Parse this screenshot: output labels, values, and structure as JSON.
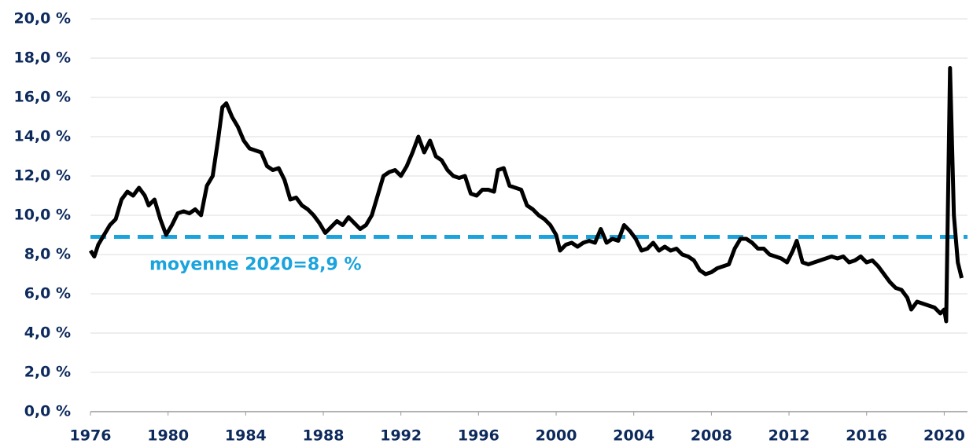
{
  "chart_data": {
    "type": "line",
    "xlim": [
      1976,
      2021.2
    ],
    "xticks": [
      1976,
      1980,
      1984,
      1988,
      1992,
      1996,
      2000,
      2004,
      2008,
      2012,
      2016,
      2020
    ],
    "ylim": [
      0,
      20
    ],
    "yticks": [
      {
        "value": 0,
        "label": "0,0 %"
      },
      {
        "value": 2,
        "label": "2,0 %"
      },
      {
        "value": 4,
        "label": "4,0 %"
      },
      {
        "value": 6,
        "label": "6,0 %"
      },
      {
        "value": 8,
        "label": "8,0 %"
      },
      {
        "value": 10,
        "label": "10,0 %"
      },
      {
        "value": 12,
        "label": "12,0 %"
      },
      {
        "value": 14,
        "label": "14,0 %"
      },
      {
        "value": 16,
        "label": "16,0 %"
      },
      {
        "value": 18,
        "label": "18,0 %"
      },
      {
        "value": 20,
        "label": "20,0 %"
      }
    ],
    "grid": true,
    "series": [
      {
        "color": "#000000",
        "x": [
          1976.0,
          1976.2,
          1976.4,
          1976.7,
          1977.0,
          1977.3,
          1977.6,
          1977.9,
          1978.2,
          1978.5,
          1978.8,
          1979.0,
          1979.3,
          1979.6,
          1979.9,
          1980.2,
          1980.5,
          1980.8,
          1981.1,
          1981.4,
          1981.7,
          1982.0,
          1982.3,
          1982.6,
          1982.8,
          1983.0,
          1983.3,
          1983.6,
          1983.9,
          1984.2,
          1984.5,
          1984.8,
          1985.1,
          1985.4,
          1985.7,
          1986.0,
          1986.3,
          1986.6,
          1986.9,
          1987.2,
          1987.5,
          1987.8,
          1988.1,
          1988.4,
          1988.7,
          1989.0,
          1989.3,
          1989.6,
          1989.9,
          1990.2,
          1990.5,
          1990.8,
          1991.1,
          1991.4,
          1991.7,
          1992.0,
          1992.3,
          1992.6,
          1992.9,
          1993.2,
          1993.5,
          1993.8,
          1994.1,
          1994.4,
          1994.7,
          1995.0,
          1995.3,
          1995.6,
          1995.9,
          1996.2,
          1996.5,
          1996.8,
          1997.0,
          1997.3,
          1997.6,
          1997.9,
          1998.2,
          1998.5,
          1998.8,
          1999.1,
          1999.4,
          1999.7,
          2000.0,
          2000.2,
          2000.5,
          2000.8,
          2001.1,
          2001.4,
          2001.7,
          2002.0,
          2002.3,
          2002.6,
          2002.9,
          2003.2,
          2003.5,
          2003.8,
          2004.1,
          2004.4,
          2004.7,
          2005.0,
          2005.3,
          2005.6,
          2005.9,
          2006.2,
          2006.5,
          2006.8,
          2007.1,
          2007.4,
          2007.7,
          2008.0,
          2008.3,
          2008.6,
          2008.9,
          2009.2,
          2009.5,
          2009.8,
          2010.1,
          2010.4,
          2010.7,
          2011.0,
          2011.3,
          2011.6,
          2011.9,
          2012.2,
          2012.4,
          2012.7,
          2013.0,
          2013.3,
          2013.6,
          2013.9,
          2014.2,
          2014.5,
          2014.8,
          2015.1,
          2015.4,
          2015.7,
          2016.0,
          2016.3,
          2016.6,
          2016.9,
          2017.2,
          2017.5,
          2017.8,
          2018.1,
          2018.3,
          2018.6,
          2018.9,
          2019.2,
          2019.5,
          2019.8,
          2020.0,
          2020.1,
          2020.3,
          2020.5,
          2020.7,
          2020.9
        ],
        "values": [
          8.2,
          7.9,
          8.5,
          9.0,
          9.5,
          9.8,
          10.8,
          11.2,
          11.0,
          11.4,
          11.0,
          10.5,
          10.8,
          9.8,
          9.0,
          9.5,
          10.1,
          10.2,
          10.1,
          10.3,
          10.0,
          11.5,
          12.0,
          14.0,
          15.5,
          15.7,
          15.0,
          14.5,
          13.8,
          13.4,
          13.3,
          13.2,
          12.5,
          12.3,
          12.4,
          11.8,
          10.8,
          10.9,
          10.5,
          10.3,
          10.0,
          9.6,
          9.1,
          9.4,
          9.7,
          9.5,
          9.9,
          9.6,
          9.3,
          9.5,
          10.0,
          11.0,
          12.0,
          12.2,
          12.3,
          12.0,
          12.5,
          13.2,
          14.0,
          13.2,
          13.8,
          13.0,
          12.8,
          12.3,
          12.0,
          11.9,
          12.0,
          11.1,
          11.0,
          11.3,
          11.3,
          11.2,
          12.3,
          12.4,
          11.5,
          11.4,
          11.3,
          10.5,
          10.3,
          10.0,
          9.8,
          9.5,
          9.0,
          8.2,
          8.5,
          8.6,
          8.4,
          8.6,
          8.7,
          8.6,
          9.3,
          8.6,
          8.8,
          8.7,
          9.5,
          9.2,
          8.8,
          8.2,
          8.3,
          8.6,
          8.2,
          8.4,
          8.2,
          8.3,
          8.0,
          7.9,
          7.7,
          7.2,
          7.0,
          7.1,
          7.3,
          7.4,
          7.5,
          8.3,
          8.8,
          8.8,
          8.6,
          8.3,
          8.3,
          8.0,
          7.9,
          7.8,
          7.6,
          8.2,
          8.7,
          7.6,
          7.5,
          7.6,
          7.7,
          7.8,
          7.9,
          7.8,
          7.9,
          7.6,
          7.7,
          7.9,
          7.6,
          7.7,
          7.4,
          7.0,
          6.6,
          6.3,
          6.2,
          5.8,
          5.2,
          5.6,
          5.5,
          5.4,
          5.3,
          5.0,
          5.2,
          4.6,
          17.5,
          10.0,
          7.6,
          6.8
        ]
      }
    ],
    "reference_line": {
      "value": 8.9,
      "label": "moyenne 2020=8,9 %",
      "color": "#1aa3dd"
    }
  }
}
